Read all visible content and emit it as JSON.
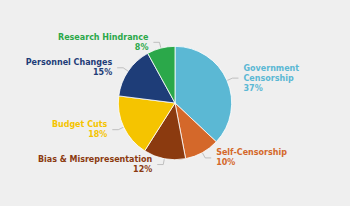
{
  "chart_data": {
    "type": "pie",
    "categories": [
      "Government\nCensorship",
      "Self-Censorship",
      "Bias & Misrepresentation",
      "Budget Cuts",
      "Personnel Changes",
      "Research Hindrance"
    ],
    "values": [
      37,
      10,
      12,
      18,
      15,
      8
    ],
    "value_labels": [
      "37%",
      "10%",
      "12%",
      "18%",
      "15%",
      "8%"
    ],
    "colors": [
      "#5BB8D4",
      "#D4682A",
      "#8B3A0F",
      "#F5C400",
      "#1E3D78",
      "#2BA84A"
    ],
    "data_labels": true
  }
}
